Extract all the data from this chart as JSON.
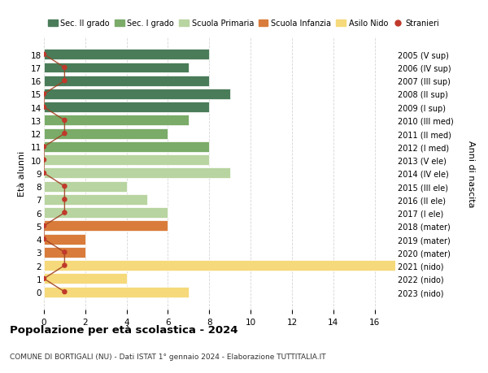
{
  "ages": [
    18,
    17,
    16,
    15,
    14,
    13,
    12,
    11,
    10,
    9,
    8,
    7,
    6,
    5,
    4,
    3,
    2,
    1,
    0
  ],
  "right_labels": [
    "2005 (V sup)",
    "2006 (IV sup)",
    "2007 (III sup)",
    "2008 (II sup)",
    "2009 (I sup)",
    "2010 (III med)",
    "2011 (II med)",
    "2012 (I med)",
    "2013 (V ele)",
    "2014 (IV ele)",
    "2015 (III ele)",
    "2016 (II ele)",
    "2017 (I ele)",
    "2018 (mater)",
    "2019 (mater)",
    "2020 (mater)",
    "2021 (nido)",
    "2022 (nido)",
    "2023 (nido)"
  ],
  "bar_values": [
    8,
    7,
    8,
    9,
    8,
    7,
    6,
    8,
    8,
    9,
    4,
    5,
    6,
    6,
    2,
    2,
    17,
    4,
    7
  ],
  "bar_colors": [
    "#4a7c59",
    "#4a7c59",
    "#4a7c59",
    "#4a7c59",
    "#4a7c59",
    "#7aab68",
    "#7aab68",
    "#7aab68",
    "#b8d4a0",
    "#b8d4a0",
    "#b8d4a0",
    "#b8d4a0",
    "#b8d4a0",
    "#d97c3b",
    "#d97c3b",
    "#d97c3b",
    "#f5d97a",
    "#f5d97a",
    "#f5d97a"
  ],
  "stranieri_x": [
    0,
    1,
    1,
    0,
    0,
    1,
    1,
    0,
    0,
    0,
    1,
    1,
    1,
    0,
    0,
    1,
    1,
    0,
    1
  ],
  "legend_labels": [
    "Sec. II grado",
    "Sec. I grado",
    "Scuola Primaria",
    "Scuola Infanzia",
    "Asilo Nido",
    "Stranieri"
  ],
  "legend_colors": [
    "#4a7c59",
    "#7aab68",
    "#b8d4a0",
    "#d97c3b",
    "#f5d97a",
    "#c0392b"
  ],
  "title": "Popolazione per età scolastica - 2024",
  "subtitle": "COMUNE DI BORTIGALI (NU) - Dati ISTAT 1° gennaio 2024 - Elaborazione TUTTITALIA.IT",
  "ylabel_left": "Età alunni",
  "ylabel_right": "Anni di nascita",
  "xlim": [
    0,
    17
  ],
  "background_color": "#ffffff",
  "grid_color": "#cccccc",
  "stranieri_color": "#c0392b",
  "stranieri_line_color": "#a04020"
}
